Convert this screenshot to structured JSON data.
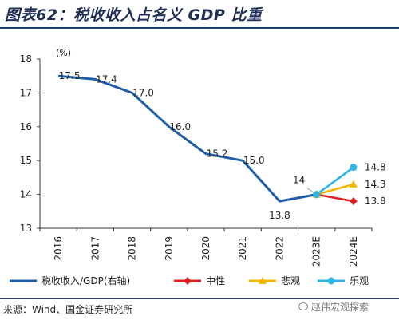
{
  "header": {
    "title": "图表62：税收收入占名义 GDP 比重"
  },
  "footer": {
    "source": "来源：Wind、国金证券研究所",
    "watermark": "赵伟宏观探索"
  },
  "chart_data": {
    "type": "line",
    "ylabel": "(%)",
    "ylim": [
      13,
      18
    ],
    "yticks": [
      13,
      14,
      15,
      16,
      17,
      18
    ],
    "categories": [
      "2016",
      "2017",
      "2018",
      "2019",
      "2020",
      "2021",
      "2022",
      "2023E",
      "2024E"
    ],
    "series": [
      {
        "name": "税收收入/GDP(右轴)",
        "color": "#1f5fa8",
        "marker": "none",
        "values": [
          17.5,
          17.4,
          17.0,
          16.0,
          15.2,
          15.0,
          13.8,
          14.0,
          null
        ],
        "labels": [
          "17.5",
          "17.4",
          "17.0",
          "16.0",
          "15.2",
          "15.0",
          "13.8",
          "14",
          null
        ]
      },
      {
        "name": "中性",
        "color": "#e02020",
        "marker": "diamond",
        "values": [
          null,
          null,
          null,
          null,
          null,
          null,
          null,
          14.0,
          13.8
        ],
        "labels": [
          null,
          null,
          null,
          null,
          null,
          null,
          null,
          null,
          "13.8"
        ]
      },
      {
        "name": "悲观",
        "color": "#f5b800",
        "marker": "triangle",
        "values": [
          null,
          null,
          null,
          null,
          null,
          null,
          null,
          14.0,
          14.3
        ],
        "labels": [
          null,
          null,
          null,
          null,
          null,
          null,
          null,
          null,
          "14.3"
        ]
      },
      {
        "name": "乐观",
        "color": "#2fb4e6",
        "marker": "circle",
        "values": [
          null,
          null,
          null,
          null,
          null,
          null,
          null,
          14.0,
          14.8
        ],
        "labels": [
          null,
          null,
          null,
          null,
          null,
          null,
          null,
          null,
          "14.8"
        ]
      }
    ],
    "legend_position": "bottom",
    "grid": false
  }
}
